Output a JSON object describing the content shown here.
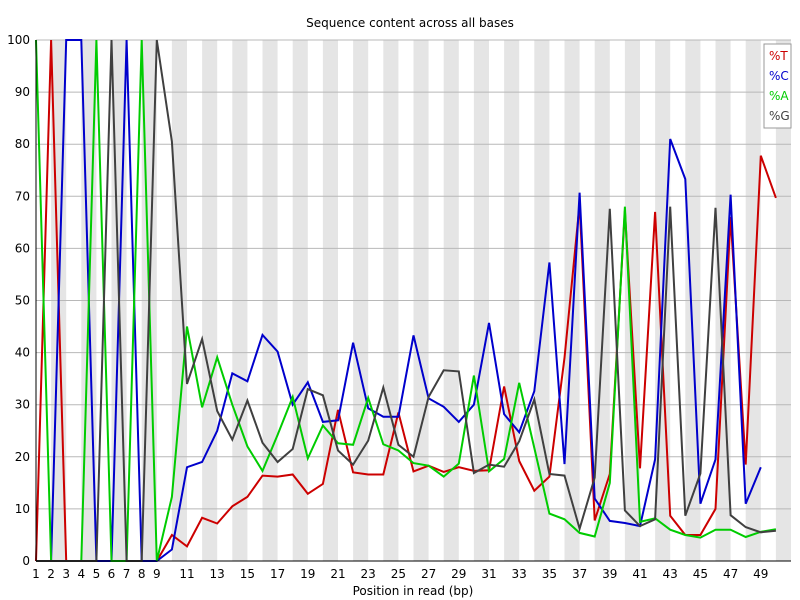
{
  "chart_data": {
    "type": "line",
    "title": "Sequence content across all bases",
    "xlabel": "Position in read (bp)",
    "ylabel": "",
    "xlim": [
      1,
      51
    ],
    "ylim": [
      0,
      100
    ],
    "grid": true,
    "x_tick_labels": [
      "1",
      "2",
      "3",
      "4",
      "5",
      "6",
      "7",
      "8",
      "9",
      "11",
      "13",
      "15",
      "17",
      "19",
      "21",
      "23",
      "25",
      "27",
      "29",
      "31",
      "33",
      "35",
      "37",
      "39",
      "41",
      "43",
      "45",
      "47",
      "49"
    ],
    "y_tick_labels": [
      "0",
      "10",
      "20",
      "30",
      "40",
      "50",
      "60",
      "70",
      "80",
      "90",
      "100"
    ],
    "legend_position": "top-right",
    "x": [
      1,
      2,
      3,
      4,
      5,
      6,
      7,
      8,
      9,
      10,
      11,
      12,
      13,
      14,
      15,
      16,
      17,
      18,
      19,
      20,
      21,
      22,
      23,
      24,
      25,
      26,
      27,
      28,
      29,
      30,
      31,
      32,
      33,
      34,
      35,
      36,
      37,
      38,
      39,
      40,
      41,
      42,
      43,
      44,
      45,
      46,
      47,
      48,
      49,
      50,
      51
    ],
    "series": [
      {
        "name": "%T",
        "color": "#cc0000",
        "values": [
          0,
          100,
          0,
          0,
          0,
          0,
          0,
          0,
          0,
          5,
          2.8,
          8.3,
          7.2,
          10.5,
          12.3,
          16.4,
          16.2,
          16.6,
          12.9,
          14.8,
          29,
          17,
          16.6,
          16.6,
          28.5,
          17.2,
          18.3,
          17.1,
          18,
          17.3,
          17.4,
          33.5,
          19.2,
          13.5,
          16.2,
          39,
          68.5,
          7.8,
          16.7,
          67.2,
          17.8,
          67,
          8.7,
          5,
          5,
          10,
          66,
          18.5,
          77.8,
          69.7,
          null
        ]
      },
      {
        "name": "%C",
        "color": "#0000cc",
        "values": [
          0,
          0,
          100,
          100,
          0,
          0,
          100,
          0,
          0,
          2.2,
          18,
          19,
          25,
          36,
          34.5,
          43.4,
          40.2,
          30,
          34.3,
          26.7,
          27,
          41.9,
          29.3,
          27.7,
          27.7,
          43.3,
          31.2,
          29.6,
          26.7,
          30,
          45.7,
          28.2,
          24.7,
          32.6,
          57.3,
          18.6,
          70.7,
          12,
          7.7,
          7.3,
          6.7,
          19.5,
          81,
          73.3,
          11,
          19.5,
          70.3,
          11,
          18,
          null,
          null
        ]
      },
      {
        "name": "%A",
        "color": "#00cc00",
        "values": [
          100,
          0,
          0,
          0,
          100,
          0,
          0,
          100,
          0,
          12.3,
          45,
          29.5,
          39.1,
          30,
          22,
          17.3,
          24.2,
          31.5,
          19.7,
          26,
          22.6,
          22.3,
          31.3,
          22.4,
          21.2,
          18.8,
          18.3,
          16.2,
          18.7,
          35.6,
          17.2,
          19.6,
          34.2,
          21.7,
          9.1,
          8,
          5.4,
          4.7,
          15,
          68,
          7.5,
          8.2,
          6,
          5,
          4.5,
          6,
          6,
          4.6,
          5.6,
          6.1,
          null
        ]
      },
      {
        "name": "%G",
        "color": "#404040",
        "values": [
          0,
          0,
          0,
          0,
          0,
          100,
          0,
          0,
          100,
          80.5,
          34,
          42.6,
          28.8,
          23.3,
          30.8,
          22.7,
          19,
          21.5,
          33,
          31.8,
          21.2,
          18.5,
          23.1,
          33.3,
          22.3,
          20,
          31.5,
          36.6,
          36.4,
          16.9,
          18.5,
          18.1,
          23,
          31,
          16.7,
          16.4,
          6.2,
          16,
          67.6,
          9.7,
          6.7,
          8,
          68,
          8.7,
          16.8,
          67.8,
          8.8,
          6.5,
          5.5,
          5.8,
          null
        ]
      }
    ]
  }
}
